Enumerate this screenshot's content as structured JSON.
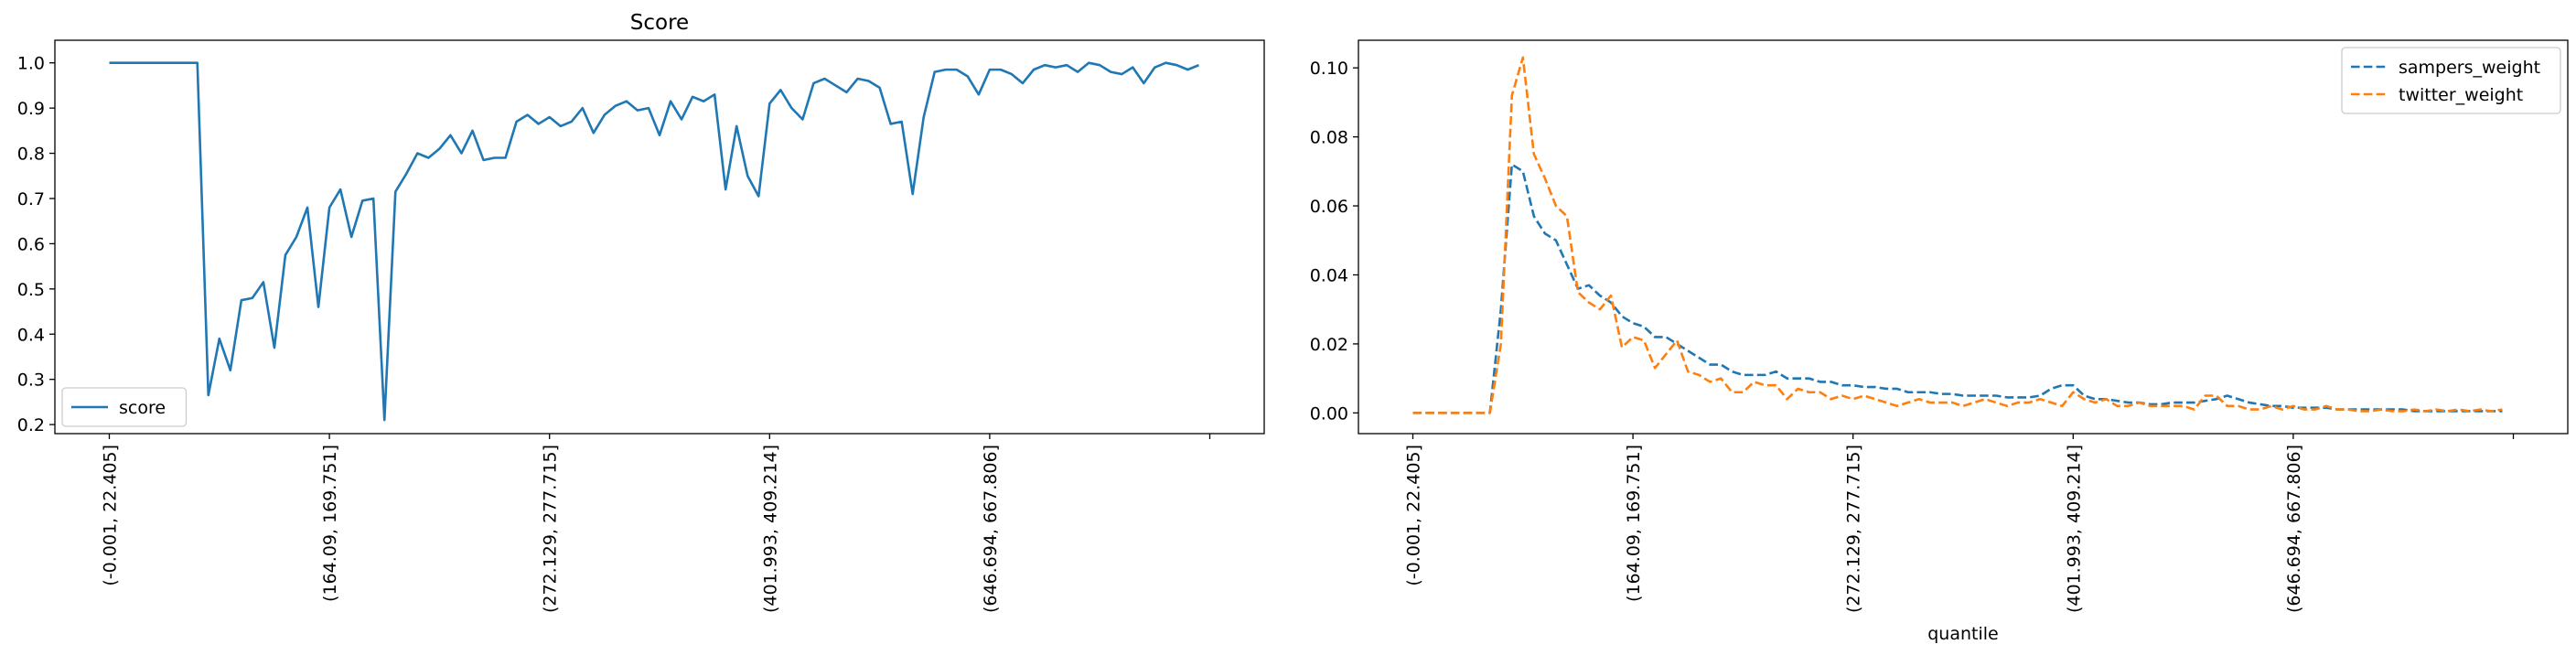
{
  "colors": {
    "blue": "#1f77b4",
    "orange": "#ff7f0e",
    "axis": "#000000",
    "legend_border": "#cccccc"
  },
  "chart_data": [
    {
      "type": "line",
      "title": "Score",
      "xlabel": "",
      "ylabel": "",
      "legend_location": "lower-left",
      "grid": false,
      "x_index_range": [
        0,
        100
      ],
      "ylim": [
        0.18,
        1.05
      ],
      "x_ticks": [
        {
          "index": 0,
          "label": "(-0.001, 22.405]"
        },
        {
          "index": 20,
          "label": "(164.09, 169.751]"
        },
        {
          "index": 40,
          "label": "(272.129, 277.715]"
        },
        {
          "index": 60,
          "label": "(401.993, 409.214]"
        },
        {
          "index": 80,
          "label": "(646.694, 667.806]"
        },
        {
          "index": 100,
          "label": ""
        }
      ],
      "y_ticks": [
        0.2,
        0.3,
        0.4,
        0.5,
        0.6,
        0.7,
        0.8,
        0.9,
        1.0
      ],
      "y_tick_labels": [
        "0.2",
        "0.3",
        "0.4",
        "0.5",
        "0.6",
        "0.7",
        "0.8",
        "0.9",
        "1.0"
      ],
      "series": [
        {
          "name": "score",
          "color": "#1f77b4",
          "dash": "solid",
          "values": [
            1.0,
            1.0,
            1.0,
            1.0,
            1.0,
            1.0,
            1.0,
            1.0,
            1.0,
            0.265,
            0.39,
            0.32,
            0.475,
            0.48,
            0.515,
            0.37,
            0.575,
            0.615,
            0.68,
            0.46,
            0.68,
            0.72,
            0.615,
            0.695,
            0.7,
            0.21,
            0.715,
            0.755,
            0.8,
            0.79,
            0.81,
            0.84,
            0.8,
            0.85,
            0.785,
            0.79,
            0.79,
            0.87,
            0.885,
            0.865,
            0.88,
            0.86,
            0.87,
            0.9,
            0.845,
            0.885,
            0.905,
            0.915,
            0.895,
            0.9,
            0.84,
            0.915,
            0.875,
            0.925,
            0.915,
            0.93,
            0.72,
            0.86,
            0.75,
            0.705,
            0.91,
            0.94,
            0.9,
            0.875,
            0.955,
            0.965,
            0.95,
            0.935,
            0.965,
            0.96,
            0.945,
            0.865,
            0.87,
            0.71,
            0.88,
            0.98,
            0.985,
            0.985,
            0.97,
            0.93,
            0.985,
            0.985,
            0.975,
            0.955,
            0.985,
            0.995,
            0.99,
            0.995,
            0.98,
            1.0,
            0.995,
            0.98,
            0.975,
            0.99,
            0.955,
            0.99,
            1.0,
            0.995,
            0.985,
            0.995
          ]
        }
      ]
    },
    {
      "type": "line",
      "title": "",
      "xlabel": "quantile",
      "ylabel": "",
      "legend_location": "top-right",
      "grid": false,
      "x_index_range": [
        0,
        100
      ],
      "ylim": [
        -0.006,
        0.108
      ],
      "x_ticks": [
        {
          "index": 0,
          "label": "(-0.001, 22.405]"
        },
        {
          "index": 20,
          "label": "(164.09, 169.751]"
        },
        {
          "index": 40,
          "label": "(272.129, 277.715]"
        },
        {
          "index": 60,
          "label": "(401.993, 409.214]"
        },
        {
          "index": 80,
          "label": "(646.694, 667.806]"
        },
        {
          "index": 100,
          "label": ""
        }
      ],
      "y_ticks": [
        0.0,
        0.02,
        0.04,
        0.06,
        0.08,
        0.1
      ],
      "y_tick_labels": [
        "0.00",
        "0.02",
        "0.04",
        "0.06",
        "0.08",
        "0.10"
      ],
      "series": [
        {
          "name": "sampers_weight",
          "color": "#1f77b4",
          "dash": "dashed",
          "values": [
            0,
            0,
            0,
            0,
            0,
            0,
            0,
            0,
            0.03,
            0.072,
            0.07,
            0.057,
            0.052,
            0.05,
            0.043,
            0.036,
            0.037,
            0.034,
            0.032,
            0.028,
            0.026,
            0.025,
            0.022,
            0.022,
            0.02,
            0.018,
            0.016,
            0.014,
            0.014,
            0.012,
            0.011,
            0.011,
            0.011,
            0.012,
            0.01,
            0.01,
            0.01,
            0.009,
            0.009,
            0.008,
            0.008,
            0.0075,
            0.0075,
            0.007,
            0.007,
            0.006,
            0.006,
            0.006,
            0.0055,
            0.0055,
            0.005,
            0.005,
            0.005,
            0.005,
            0.0045,
            0.0045,
            0.0045,
            0.005,
            0.007,
            0.008,
            0.008,
            0.005,
            0.004,
            0.004,
            0.0035,
            0.003,
            0.003,
            0.0025,
            0.0025,
            0.003,
            0.003,
            0.003,
            0.0035,
            0.004,
            0.005,
            0.004,
            0.003,
            0.0025,
            0.002,
            0.002,
            0.0015,
            0.0015,
            0.0015,
            0.0015,
            0.001,
            0.001,
            0.001,
            0.001,
            0.001,
            0.001,
            0.001,
            0.0005,
            0.0005,
            0.0005,
            0.0005,
            0.0005,
            0.0005,
            0.0005,
            0.0005,
            0.0005
          ]
        },
        {
          "name": "twitter_weight",
          "color": "#ff7f0e",
          "dash": "dashed",
          "values": [
            0,
            0,
            0,
            0,
            0,
            0,
            0,
            0,
            0.02,
            0.092,
            0.103,
            0.075,
            0.068,
            0.06,
            0.057,
            0.035,
            0.032,
            0.03,
            0.034,
            0.019,
            0.022,
            0.021,
            0.013,
            0.017,
            0.021,
            0.012,
            0.011,
            0.009,
            0.01,
            0.006,
            0.006,
            0.009,
            0.008,
            0.008,
            0.004,
            0.007,
            0.006,
            0.006,
            0.004,
            0.005,
            0.004,
            0.005,
            0.004,
            0.003,
            0.002,
            0.003,
            0.004,
            0.003,
            0.003,
            0.003,
            0.002,
            0.003,
            0.004,
            0.003,
            0.002,
            0.003,
            0.003,
            0.004,
            0.003,
            0.002,
            0.006,
            0.004,
            0.003,
            0.004,
            0.002,
            0.002,
            0.003,
            0.002,
            0.002,
            0.002,
            0.002,
            0.001,
            0.005,
            0.005,
            0.002,
            0.002,
            0.001,
            0.001,
            0.002,
            0.001,
            0.002,
            0.001,
            0.001,
            0.002,
            0.001,
            0.001,
            0.0005,
            0.0005,
            0.001,
            0.0005,
            0.0005,
            0.001,
            0.0005,
            0.001,
            0.0005,
            0.001,
            0.0005,
            0.001,
            0.0005,
            0.001
          ]
        }
      ]
    }
  ]
}
